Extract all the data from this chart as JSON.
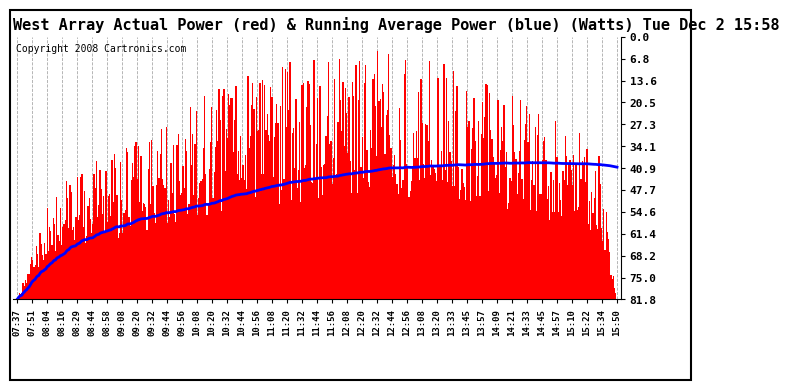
{
  "title": "West Array Actual Power (red) & Running Average Power (blue) (Watts) Tue Dec 2 15:58",
  "copyright": "Copyright 2008 Cartronics.com",
  "ylabel_right": [
    "81.8",
    "75.0",
    "68.2",
    "61.4",
    "54.6",
    "47.7",
    "40.9",
    "34.1",
    "27.3",
    "20.5",
    "13.6",
    "6.8",
    "0.0"
  ],
  "ymax": 81.8,
  "ymin": 0.0,
  "yticks": [
    0.0,
    6.8,
    13.6,
    20.5,
    27.3,
    34.1,
    40.9,
    47.7,
    54.6,
    61.4,
    68.2,
    75.0,
    81.8
  ],
  "xtick_labels": [
    "07:37",
    "07:51",
    "08:04",
    "08:16",
    "08:29",
    "08:44",
    "08:58",
    "09:08",
    "09:20",
    "09:32",
    "09:44",
    "09:56",
    "10:08",
    "10:20",
    "10:32",
    "10:44",
    "10:56",
    "11:08",
    "11:20",
    "11:32",
    "11:44",
    "11:56",
    "12:08",
    "12:20",
    "12:32",
    "12:44",
    "12:56",
    "13:08",
    "13:20",
    "13:33",
    "13:45",
    "13:57",
    "14:09",
    "14:21",
    "14:33",
    "14:45",
    "14:57",
    "15:10",
    "15:22",
    "15:34",
    "15:50"
  ],
  "bar_color": "#FF0000",
  "line_color": "#0000FF",
  "background_color": "#FFFFFF",
  "grid_color": "#AAAAAA",
  "title_fontsize": 11,
  "copyright_fontsize": 7
}
